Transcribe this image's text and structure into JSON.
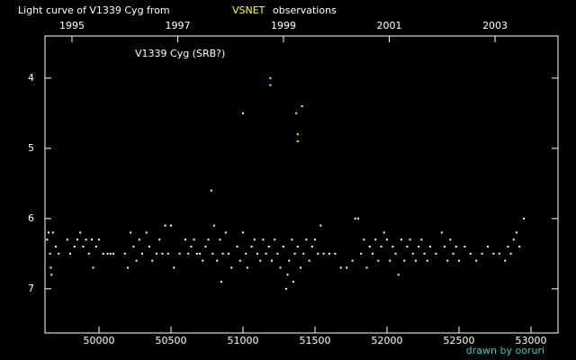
{
  "chart_data": {
    "type": "scatter",
    "title": "Light curve of V1339 Cyg from",
    "title_highlight": "VSNET",
    "title_suffix": "observations",
    "annotation": "V1339 Cyg (SRB?)",
    "credit": "drawn by ooruri",
    "xlim": [
      49625,
      53187.5
    ],
    "xticks": [
      50000,
      50500,
      51000,
      51500,
      52000,
      52500,
      53000
    ],
    "x2lim": [
      1994.49,
      2004.19
    ],
    "x2ticks": [
      1995,
      1997,
      1999,
      2001,
      2003
    ],
    "ylim": [
      7.63,
      3.4
    ],
    "yticks": [
      4,
      5,
      6,
      7
    ],
    "series": [
      {
        "color": "#ffffff",
        "x": [
          49640,
          49650,
          49660,
          49665,
          49670,
          49680,
          49700,
          49720,
          49780,
          49800,
          49830,
          49850,
          49870,
          49890,
          49910,
          49930,
          49950,
          49960,
          49980,
          50000,
          50030,
          50060,
          50080,
          50100,
          50180,
          50200,
          50220,
          50240,
          50260,
          50280,
          50300,
          50330,
          50350,
          50370,
          50400,
          50420,
          50440,
          50460,
          50480,
          50500,
          50520,
          50560,
          50600,
          50620,
          50640,
          50660,
          50680,
          50700,
          50720,
          50740,
          50760,
          50780,
          50790,
          50800,
          50820,
          50840,
          50850,
          50860,
          50880,
          50900,
          50920,
          50960,
          50980,
          51000,
          51020,
          51030,
          51060,
          51080,
          51100,
          51120,
          51140,
          51160,
          51180,
          51200,
          51220,
          51240,
          51260,
          51280,
          51300,
          51310,
          51320,
          51340,
          51350,
          51360,
          51380,
          51400,
          51420,
          51440,
          51460,
          51480,
          51500,
          51520,
          51540,
          51560,
          51600,
          51640,
          51680,
          51720,
          51760,
          51780,
          51800,
          51820,
          51840,
          51860,
          51880,
          51900,
          51920,
          51940,
          51960,
          51980,
          52000,
          52020,
          52040,
          52060,
          52080,
          52100,
          52120,
          52140,
          52160,
          52180,
          52200,
          52220,
          52240,
          52260,
          52280,
          52300,
          52340,
          52380,
          52400,
          52420,
          52440,
          52460,
          52480,
          52500,
          52540,
          52580,
          52620,
          52660,
          52700,
          52740,
          52780,
          52820,
          52840,
          52860,
          52880,
          52900,
          52920,
          52950
        ],
        "values": [
          6.3,
          6.2,
          6.5,
          6.7,
          6.8,
          6.2,
          6.4,
          6.5,
          6.3,
          6.5,
          6.4,
          6.3,
          6.2,
          6.4,
          6.3,
          6.5,
          6.3,
          6.7,
          6.4,
          6.3,
          6.5,
          6.5,
          6.5,
          6.5,
          6.5,
          6.7,
          6.2,
          6.4,
          6.6,
          6.3,
          6.5,
          6.2,
          6.4,
          6.6,
          6.5,
          6.3,
          6.5,
          6.1,
          6.5,
          6.1,
          6.7,
          6.5,
          6.3,
          6.5,
          6.4,
          6.3,
          6.5,
          6.5,
          6.6,
          6.4,
          6.3,
          5.6,
          6.5,
          6.1,
          6.6,
          6.3,
          6.9,
          6.5,
          6.2,
          6.5,
          6.7,
          6.4,
          6.6,
          6.2,
          6.5,
          6.7,
          6.4,
          6.3,
          6.5,
          6.6,
          6.3,
          6.5,
          6.4,
          6.6,
          6.3,
          6.5,
          6.7,
          6.4,
          7.0,
          6.8,
          6.6,
          6.3,
          6.9,
          6.5,
          6.4,
          6.7,
          6.5,
          6.3,
          6.6,
          6.4,
          6.3,
          6.5,
          6.1,
          6.5,
          6.5,
          6.5,
          6.7,
          6.7,
          6.6,
          6.0,
          6.0,
          6.5,
          6.3,
          6.7,
          6.4,
          6.5,
          6.3,
          6.6,
          6.4,
          6.2,
          6.3,
          6.6,
          6.4,
          6.5,
          6.8,
          6.3,
          6.6,
          6.4,
          6.3,
          6.5,
          6.6,
          6.4,
          6.3,
          6.5,
          6.6,
          6.4,
          6.5,
          6.2,
          6.4,
          6.6,
          6.3,
          6.5,
          6.4,
          6.6,
          6.4,
          6.5,
          6.6,
          6.5,
          6.4,
          6.5,
          6.5,
          6.6,
          6.4,
          6.5,
          6.3,
          6.2,
          6.4,
          6.0
        ]
      },
      {
        "color": "#ffff33",
        "x": [
          51000,
          51190,
          51190,
          51370,
          51410,
          51380,
          51380
        ],
        "values": [
          4.5,
          4.0,
          4.1,
          4.5,
          4.4,
          4.8,
          4.9
        ]
      }
    ]
  }
}
